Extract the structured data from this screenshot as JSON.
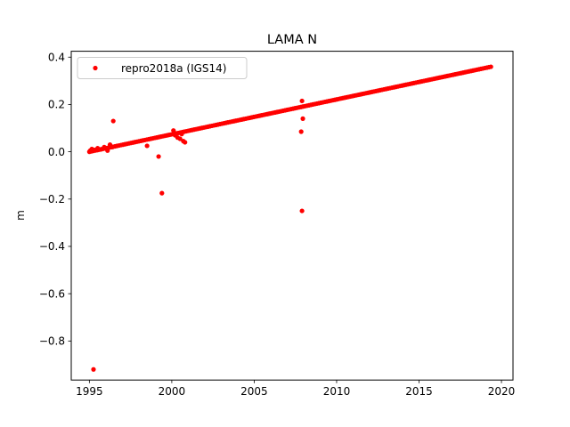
{
  "chart_data": {
    "type": "scatter",
    "title": "LAMA N",
    "xlabel": "",
    "ylabel": "m",
    "xlim": [
      1993.9,
      2020.7
    ],
    "ylim": [
      -0.965,
      0.425
    ],
    "x_ticks": [
      1995,
      2000,
      2005,
      2010,
      2015,
      2020
    ],
    "x_tick_labels": [
      "1995",
      "2000",
      "2005",
      "2010",
      "2015",
      "2020"
    ],
    "y_ticks": [
      0.4,
      0.2,
      0.0,
      -0.2,
      -0.4,
      -0.6,
      -0.8
    ],
    "y_tick_labels": [
      "0.4",
      "0.2",
      "0.0",
      "−0.2",
      "−0.4",
      "−0.6",
      "−0.8"
    ],
    "grid": false,
    "legend_position": "top-left",
    "series": [
      {
        "name": "repro2018a (IGS14)",
        "color": "#ff0000",
        "marker": "dot",
        "trend": {
          "x_start": 1995.0,
          "y_start": 0.0,
          "x_end": 2019.4,
          "y_end": 0.36,
          "step_years": 0.12
        },
        "points": [
          {
            "x": 1995.05,
            "y": 0.005
          },
          {
            "x": 1995.15,
            "y": 0.012
          },
          {
            "x": 1995.3,
            "y": 0.008
          },
          {
            "x": 1995.5,
            "y": 0.015
          },
          {
            "x": 1995.7,
            "y": 0.01
          },
          {
            "x": 1995.9,
            "y": 0.02
          },
          {
            "x": 1996.1,
            "y": 0.005
          },
          {
            "x": 1996.25,
            "y": 0.03
          },
          {
            "x": 1996.4,
            "y": 0.02
          },
          {
            "x": 1996.45,
            "y": 0.13
          },
          {
            "x": 1998.5,
            "y": 0.025
          },
          {
            "x": 1999.2,
            "y": -0.02
          },
          {
            "x": 1999.4,
            "y": -0.175
          },
          {
            "x": 1995.25,
            "y": -0.92
          },
          {
            "x": 2000.1,
            "y": 0.09
          },
          {
            "x": 2000.2,
            "y": 0.07
          },
          {
            "x": 2000.35,
            "y": 0.06
          },
          {
            "x": 2000.5,
            "y": 0.055
          },
          {
            "x": 2000.6,
            "y": 0.075
          },
          {
            "x": 2000.7,
            "y": 0.045
          },
          {
            "x": 2000.8,
            "y": 0.04
          },
          {
            "x": 2007.9,
            "y": 0.215
          },
          {
            "x": 2007.95,
            "y": 0.14
          },
          {
            "x": 2007.85,
            "y": 0.085
          },
          {
            "x": 2007.9,
            "y": -0.25
          }
        ]
      }
    ]
  }
}
